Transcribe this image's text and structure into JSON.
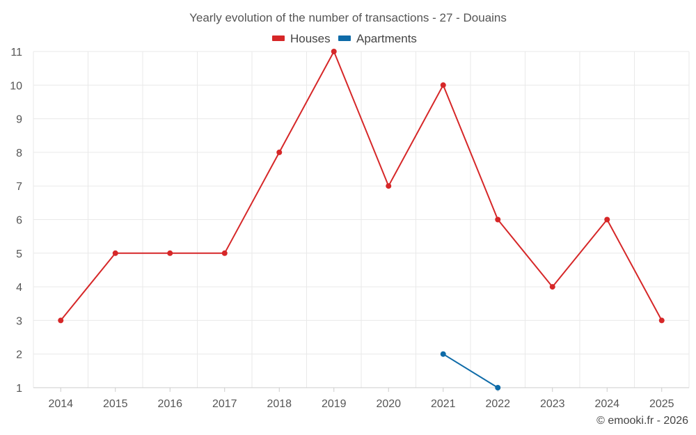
{
  "chart_data": {
    "type": "line",
    "title": "Yearly evolution of the number of transactions - 27 - Douains",
    "categories": [
      "2014",
      "2015",
      "2016",
      "2017",
      "2018",
      "2019",
      "2020",
      "2021",
      "2022",
      "2023",
      "2024",
      "2025"
    ],
    "series": [
      {
        "name": "Houses",
        "color": "#d62728",
        "values": [
          3,
          5,
          5,
          5,
          8,
          11,
          7,
          10,
          6,
          4,
          6,
          3
        ]
      },
      {
        "name": "Apartments",
        "color": "#0e6ba8",
        "values": [
          null,
          null,
          null,
          null,
          null,
          null,
          null,
          2,
          1,
          null,
          null,
          null
        ]
      }
    ],
    "ylim": [
      1,
      11
    ],
    "yticks": [
      1,
      2,
      3,
      4,
      5,
      6,
      7,
      8,
      9,
      10,
      11
    ],
    "xlabel": "",
    "ylabel": "",
    "grid": true,
    "legend": "top-center"
  },
  "credit": "© emooki.fr - 2026"
}
